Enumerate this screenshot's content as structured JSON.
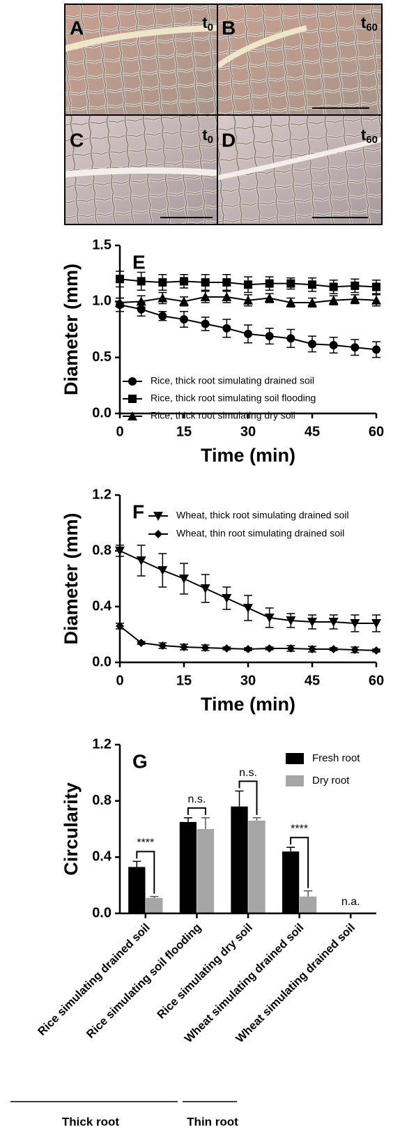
{
  "photo_panels": [
    {
      "label": "A",
      "time": "t",
      "time_subscript": "0"
    },
    {
      "label": "B",
      "time": "t",
      "time_subscript": "60"
    },
    {
      "label": "C",
      "time": "t",
      "time_subscript": "0"
    },
    {
      "label": "D",
      "time": "t",
      "time_subscript": "60"
    }
  ],
  "chart_data": [
    {
      "type": "line",
      "panel_label": "E",
      "x_label": "Time (min)",
      "y_label": "Diameter (mm)",
      "x": [
        0,
        5,
        10,
        15,
        20,
        25,
        30,
        35,
        40,
        45,
        50,
        55,
        60
      ],
      "xlim": [
        0,
        60
      ],
      "xticks": [
        0,
        15,
        30,
        45,
        60
      ],
      "ylim": [
        0,
        1.5
      ],
      "yticks": [
        {
          "value": 0,
          "label": "0.0"
        },
        0.5,
        {
          "value": 1,
          "label": "1.0"
        },
        1.5
      ],
      "legend": "lower left",
      "series": [
        {
          "name": "Rice, thick root simulating drained soil",
          "color": "#000000",
          "marker": "circle",
          "values": [
            0.97,
            0.93,
            0.87,
            0.84,
            0.8,
            0.76,
            0.71,
            0.69,
            0.67,
            0.62,
            0.61,
            0.59,
            0.57
          ],
          "errors": [
            0.06,
            0.06,
            0.04,
            0.07,
            0.06,
            0.08,
            0.08,
            0.07,
            0.08,
            0.07,
            0.07,
            0.07,
            0.07
          ]
        },
        {
          "name": "Rice, thick root simulating soil flooding",
          "color": "#000000",
          "marker": "square",
          "values": [
            1.2,
            1.18,
            1.17,
            1.18,
            1.17,
            1.17,
            1.15,
            1.16,
            1.16,
            1.15,
            1.13,
            1.14,
            1.13
          ],
          "errors": [
            0.07,
            0.08,
            0.07,
            0.06,
            0.07,
            0.07,
            0.07,
            0.06,
            0.05,
            0.06,
            0.06,
            0.06,
            0.06
          ]
        },
        {
          "name": "Rice, thick root simulating dry soil",
          "color": "#000000",
          "marker": "triangle",
          "values": [
            0.99,
            1.0,
            1.03,
            1.0,
            1.04,
            1.04,
            1.01,
            1.03,
            0.99,
            0.99,
            1.01,
            1.02,
            1.01
          ],
          "errors": [
            0.04,
            0.05,
            0.05,
            0.04,
            0.05,
            0.05,
            0.05,
            0.04,
            0.04,
            0.04,
            0.04,
            0.04,
            0.05
          ]
        }
      ]
    },
    {
      "type": "line",
      "panel_label": "F",
      "x_label": "Time (min)",
      "y_label": "Diameter (mm)",
      "x": [
        0,
        5,
        10,
        15,
        20,
        25,
        30,
        35,
        40,
        45,
        50,
        55,
        60
      ],
      "xlim": [
        0,
        60
      ],
      "xticks": [
        0,
        15,
        30,
        45,
        60
      ],
      "ylim": [
        0,
        1.2
      ],
      "yticks": [
        {
          "value": 0,
          "label": "0.0"
        },
        0.4,
        0.8,
        1.2
      ],
      "legend": "upper left",
      "series": [
        {
          "name": "Wheat, thick root simulating drained soil",
          "color": "#000000",
          "marker": "triangle-down",
          "values": [
            0.8,
            0.73,
            0.66,
            0.6,
            0.53,
            0.46,
            0.39,
            0.32,
            0.3,
            0.29,
            0.29,
            0.28,
            0.28
          ],
          "errors": [
            0.04,
            0.11,
            0.12,
            0.11,
            0.1,
            0.08,
            0.09,
            0.07,
            0.05,
            0.05,
            0.05,
            0.06,
            0.06
          ]
        },
        {
          "name": "Wheat, thin root simulating drained soil",
          "color": "#000000",
          "marker": "diamond",
          "values": [
            0.26,
            0.14,
            0.12,
            0.11,
            0.105,
            0.1,
            0.095,
            0.1,
            0.1,
            0.095,
            0.095,
            0.09,
            0.085
          ],
          "errors": [
            0.02,
            0.01,
            0.02,
            0.02,
            0.02,
            0.01,
            0.01,
            0.01,
            0.02,
            0.02,
            0.01,
            0.02,
            0.01
          ]
        }
      ]
    },
    {
      "type": "bar",
      "panel_label": "G",
      "y_label": "Circularity",
      "categories": [
        "Rice simulating drained soil",
        "Rice simulating soil flooding",
        "Rice simulating dry soil",
        "Wheat simulating drained soil",
        "Wheat simulating drained soil"
      ],
      "ylim": [
        0,
        1.2
      ],
      "yticks": [
        {
          "value": 0,
          "label": "0.0"
        },
        0.4,
        0.8,
        1.2
      ],
      "legend": "upper right",
      "series": [
        {
          "name": "Fresh root",
          "color": "#000000",
          "values": [
            0.33,
            0.65,
            0.76,
            0.44,
            null
          ],
          "errors": [
            0.04,
            0.03,
            0.11,
            0.03,
            null
          ]
        },
        {
          "name": "Dry root",
          "color": "#a6a6a6",
          "values": [
            0.11,
            0.6,
            0.66,
            0.12,
            null
          ],
          "errors": [
            0.01,
            0.08,
            0.02,
            0.04,
            null
          ]
        }
      ],
      "annotations": [
        "****",
        "n.s.",
        "n.s.",
        "****",
        "n.a."
      ],
      "groups": [
        "Thick root",
        "Thin root"
      ]
    }
  ]
}
